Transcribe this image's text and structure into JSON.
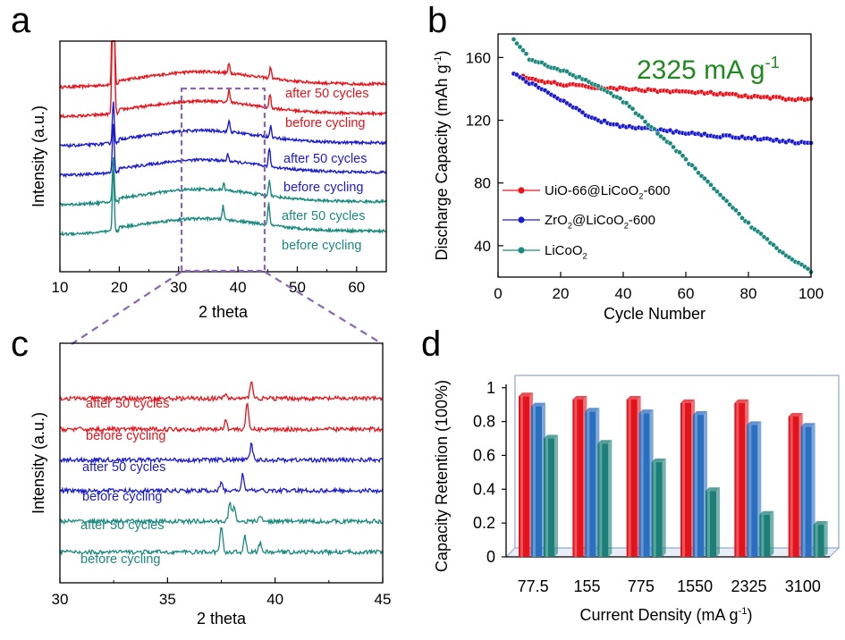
{
  "colors": {
    "red": "#e8141b",
    "blue": "#1c1ccf",
    "teal": "#1a8a80",
    "bar_red": "#e3121b",
    "bar_blue": "#2b6fc0",
    "bar_teal": "#1c8078",
    "dash": "#8a64b5"
  },
  "chart_data": [
    {
      "panel": "a",
      "type": "line",
      "xlabel": "2 theta",
      "ylabel": "Intensity (a.u.)",
      "xlim": [
        10,
        65
      ],
      "xticks": [
        "10",
        "20",
        "30",
        "40",
        "50",
        "60"
      ],
      "series": [
        {
          "name": "after 50 cycles",
          "color": "red",
          "baseline": 8.3,
          "peaks": [
            [
              19.0,
              14
            ],
            [
              38.5,
              0.4
            ],
            [
              45.5,
              0.5
            ]
          ]
        },
        {
          "name": "before cycling",
          "color": "red",
          "baseline": 7.0,
          "peaks": [
            [
              19.0,
              14
            ],
            [
              38.5,
              0.6
            ],
            [
              45.4,
              0.6
            ]
          ]
        },
        {
          "name": "after 50 cycles",
          "color": "blue",
          "baseline": 5.7,
          "peaks": [
            [
              19.0,
              1.8
            ],
            [
              38.5,
              0.5
            ],
            [
              45.5,
              0.5
            ]
          ]
        },
        {
          "name": "before cycling",
          "color": "blue",
          "baseline": 4.4,
          "peaks": [
            [
              19.0,
              2.2
            ],
            [
              38.3,
              0.3
            ],
            [
              45.3,
              0.8
            ]
          ]
        },
        {
          "name": "after 50 cycles",
          "color": "teal",
          "baseline": 3.1,
          "peaks": [
            [
              19.0,
              2.0
            ],
            [
              37.6,
              0.3
            ],
            [
              45.3,
              0.7
            ]
          ]
        },
        {
          "name": "before cycling",
          "color": "teal",
          "baseline": 1.8,
          "peaks": [
            [
              19.0,
              2.8
            ],
            [
              37.5,
              0.6
            ],
            [
              45.2,
              1.0
            ]
          ]
        }
      ],
      "highlight_box": [
        30.5,
        44.5
      ]
    },
    {
      "panel": "b",
      "type": "scatter",
      "title": "2325 mA g-1",
      "xlabel": "Cycle Number",
      "ylabel": "Discharge Capacity (mAh g-1)",
      "xlim": [
        0,
        100
      ],
      "ylim": [
        20,
        175
      ],
      "xticks": [
        "0",
        "20",
        "40",
        "60",
        "80",
        "100"
      ],
      "yticks": [
        "40",
        "80",
        "120",
        "160"
      ],
      "legend": "left",
      "series": [
        {
          "name": "UiO-66@LiCoO2-600",
          "color": "red",
          "points": [
            [
              5,
              150
            ],
            [
              10,
              146
            ],
            [
              20,
              143
            ],
            [
              30,
              141
            ],
            [
              40,
              140
            ],
            [
              50,
              139
            ],
            [
              60,
              138
            ],
            [
              70,
              137
            ],
            [
              80,
              135
            ],
            [
              90,
              134
            ],
            [
              100,
              133
            ]
          ]
        },
        {
          "name": "ZrO2@LiCoO2-600",
          "color": "blue",
          "points": [
            [
              5,
              150
            ],
            [
              10,
              144
            ],
            [
              20,
              133
            ],
            [
              30,
              121
            ],
            [
              40,
              116
            ],
            [
              50,
              114
            ],
            [
              60,
              112
            ],
            [
              70,
              110
            ],
            [
              80,
              109
            ],
            [
              90,
              107
            ],
            [
              100,
              105
            ]
          ]
        },
        {
          "name": "LiCoO2",
          "color": "teal",
          "points": [
            [
              5,
              172
            ],
            [
              10,
              159
            ],
            [
              20,
              152
            ],
            [
              30,
              144
            ],
            [
              40,
              132
            ],
            [
              50,
              114
            ],
            [
              60,
              95
            ],
            [
              70,
              74
            ],
            [
              80,
              54
            ],
            [
              90,
              37
            ],
            [
              100,
              24
            ]
          ]
        }
      ]
    },
    {
      "panel": "c",
      "type": "line",
      "xlabel": "2 theta",
      "ylabel": "Intensity (a.u.)",
      "xlim": [
        30,
        45
      ],
      "xticks": [
        "30",
        "35",
        "40",
        "45"
      ],
      "series": [
        {
          "name": "after 50 cycles",
          "color": "red",
          "baseline": 6.0,
          "peaks": [
            [
              37.7,
              0.15
            ],
            [
              38.9,
              0.6
            ]
          ]
        },
        {
          "name": "before cycling",
          "color": "red",
          "baseline": 5.0,
          "peaks": [
            [
              37.7,
              0.3
            ],
            [
              38.7,
              0.8
            ]
          ]
        },
        {
          "name": "after 50 cycles",
          "color": "blue",
          "baseline": 4.0,
          "peaks": [
            [
              38.9,
              0.5
            ]
          ]
        },
        {
          "name": "before cycling",
          "color": "blue",
          "baseline": 3.0,
          "peaks": [
            [
              37.5,
              0.25
            ],
            [
              38.5,
              0.55
            ]
          ]
        },
        {
          "name": "after 50 cycles",
          "color": "teal",
          "baseline": 2.0,
          "peaks": [
            [
              37.9,
              0.6
            ],
            [
              38.1,
              0.5
            ],
            [
              39.3,
              0.2
            ]
          ]
        },
        {
          "name": "before cycling",
          "color": "teal",
          "baseline": 1.0,
          "peaks": [
            [
              37.5,
              0.8
            ],
            [
              38.6,
              0.5
            ],
            [
              39.3,
              0.3
            ]
          ]
        }
      ]
    },
    {
      "panel": "d",
      "type": "bar",
      "xlabel": "Current Density (mA g-1)",
      "ylabel": "Capacity Retention (100%)",
      "ylim": [
        0,
        1.02
      ],
      "yticks": [
        "0",
        "0.2",
        "0.4",
        "0.6",
        "0.8",
        "1"
      ],
      "categories": [
        "77.5",
        "155",
        "775",
        "1550",
        "2325",
        "3100"
      ],
      "series": [
        {
          "color": "bar_red",
          "values": [
            0.95,
            0.93,
            0.93,
            0.91,
            0.91,
            0.83
          ]
        },
        {
          "color": "bar_blue",
          "values": [
            0.89,
            0.86,
            0.85,
            0.84,
            0.78,
            0.77
          ]
        },
        {
          "color": "bar_teal",
          "values": [
            0.7,
            0.67,
            0.56,
            0.39,
            0.25,
            0.19
          ]
        }
      ]
    }
  ]
}
